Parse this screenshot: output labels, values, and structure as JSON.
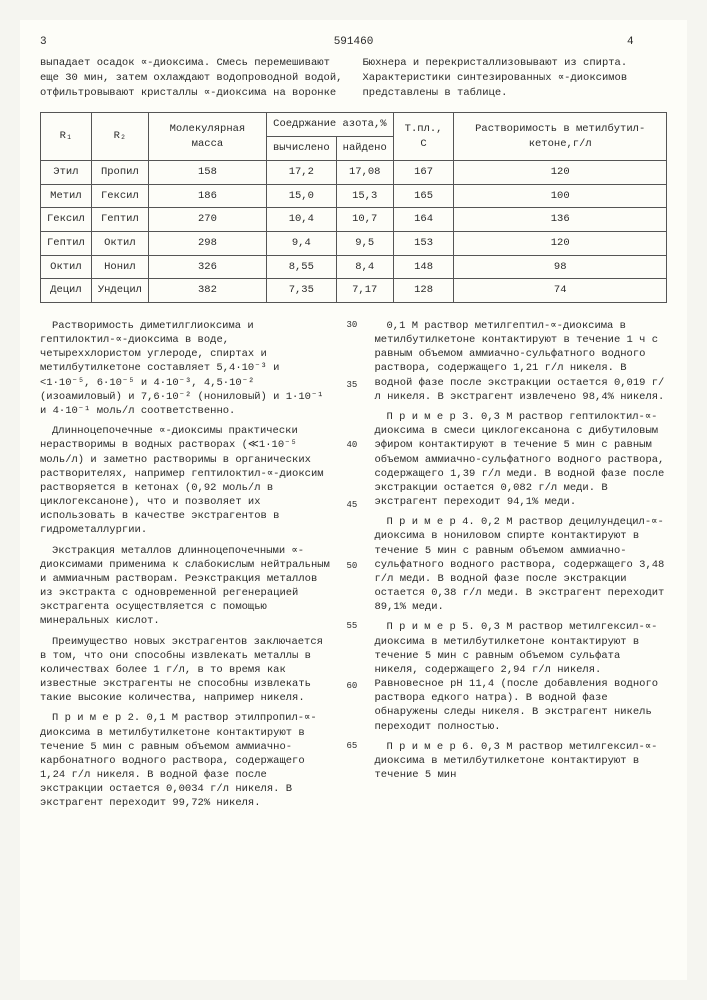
{
  "header": {
    "left_page": "3",
    "doc_number": "591460",
    "right_page": "4"
  },
  "top_left": "выпадает осадок ∝-диоксима. Смесь перемешивают еще 30 мин, затем охлаждают водопроводной водой, отфильтровывают кристаллы ∝-диоксима на воронке",
  "top_right": "Бюхнера и перекристаллизовывают из спирта.\nХарактеристики синтезированных ∝-диоксимов представлены в таблице.",
  "table": {
    "headers": {
      "r1": "R₁",
      "r2": "R₂",
      "mass": "Молекулярная масса",
      "nitrogen": "Соедржание азота,%",
      "n_calc": "вычислено",
      "n_found": "найдено",
      "temp": "Т.пл., С",
      "solub": "Растворимость в метилбутил-кетоне,г/л"
    },
    "rows": [
      {
        "r1": "Этил",
        "r2": "Пропил",
        "mass": "158",
        "calc": "17,2",
        "found": "17,08",
        "temp": "167",
        "sol": "120"
      },
      {
        "r1": "Метил",
        "r2": "Гексил",
        "mass": "186",
        "calc": "15,0",
        "found": "15,3",
        "temp": "165",
        "sol": "100"
      },
      {
        "r1": "Гексил",
        "r2": "Гептил",
        "mass": "270",
        "calc": "10,4",
        "found": "10,7",
        "temp": "164",
        "sol": "136"
      },
      {
        "r1": "Гептил",
        "r2": "Октил",
        "mass": "298",
        "calc": "9,4",
        "found": "9,5",
        "temp": "153",
        "sol": "120"
      },
      {
        "r1": "Октил",
        "r2": "Нонил",
        "mass": "326",
        "calc": "8,55",
        "found": "8,4",
        "temp": "148",
        "sol": "98"
      },
      {
        "r1": "Децил",
        "r2": "Ундецил",
        "mass": "382",
        "calc": "7,35",
        "found": "7,17",
        "temp": "128",
        "sol": "74"
      }
    ]
  },
  "left_paras": [
    "Растворимость диметилглиоксима и гептилоктил-∝-диоксима в воде, четыреххлористом углероде, спиртах и метилбутилкетоне составляет 5,4·10⁻³ и <1·10⁻⁵, 6·10⁻⁵ и 4·10⁻³, 4,5·10⁻² (изоамиловый) и 7,6·10⁻² (нониловый) и 1·10⁻¹ и 4·10⁻¹ моль/л соответственно.",
    "Длинноцепочечные ∝-диоксимы практически нерастворимы в водных растворах (≪1·10⁻⁵ моль/л) и заметно растворимы в органических растворителях, например гептилоктил-∝-диоксим растворяется в кетонах (0,92 моль/л в циклогексаноне), что и позволяет их использовать в качестве экстрагентов в гидрометаллургии.",
    "Экстракция металлов длинноцепочечными ∝-диоксимами применима к слабокислым нейтральным и аммиачным растворам. Реэкстракция металлов из экстракта с одновременной регенерацией экстрагента осуществляется с помощью минеральных кислот.",
    "Преимущество новых экстрагентов заключается в том, что они способны извлекать металлы в количествах более 1 г/л, в то время как известные экстрагенты не способны извлекать такие высокие количества, например никеля.",
    "П р и м е р 2. 0,1 М раствор этилпропил-∝-диоксима в метилбутилкетоне контактируют в течение 5 мин с равным объемом аммиачно-карбонатного водного раствора, содержащего 1,24 г/л никеля. В водной фазе после экстракции остается 0,0034 г/л никеля. В экстрагент переходит 99,72% никеля."
  ],
  "right_paras": [
    "0,1 М раствор метилгептил-∝-диоксима в метилбутилкетоне контактируют в течение 1 ч с равным объемом аммиачно-сульфатного водного раствора, содержащего 1,21 г/л никеля. В водной фазе после экстракции остается 0,019 г/л никеля. В экстрагент извлечено 98,4% никеля.",
    "П р и м е р 3. 0,3 М раствор гептилоктил-∝-диоксима в смеси циклогексанона с дибутиловым эфиром контактируют в течение 5 мин с равным объемом аммиачно-сульфатного водного раствора, содержащего 1,39 г/л меди. В водной фазе после экстракции остается 0,082 г/л меди. В экстрагент переходит 94,1% меди.",
    "П р и м е р 4. 0,2 М раствор децилундецил-∝-диоксима в нониловом спирте контактируют в течение 5 мин с равным объемом аммиачно-сульфатного водного раствора, содержащего 3,48 г/л меди. В водной фазе после экстракции остается 0,38 г/л меди. В экстрагент переходит 89,1% меди.",
    "П р и м е р 5. 0,3 М раствор метилгексил-∝-диоксима в метилбутилкетоне контактируют в течение 5 мин с равным объемом сульфата никеля, содержащего 2,94 г/л никеля. Равновесное рН 11,4 (после добавления водного раствора едкого натра). В водной фазе обнаружены следы никеля. В экстрагент никель переходит полностью.",
    "П р и м е р 6. 0,3 М раствор метилгексил-∝-диоксима в метилбутилкетоне контактируют в течение 5 мин"
  ],
  "line_numbers": [
    "30",
    "35",
    "40",
    "45",
    "50",
    "55",
    "60",
    "65"
  ]
}
